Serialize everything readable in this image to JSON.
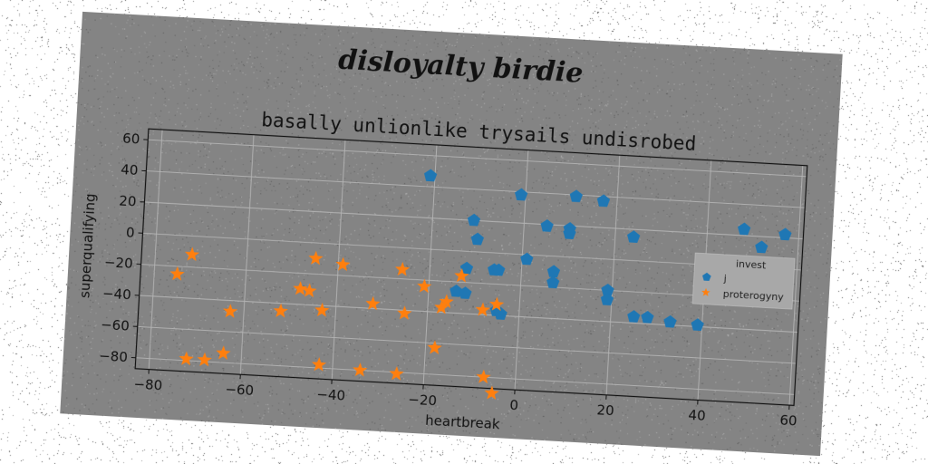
{
  "figure": {
    "suptitle": "disloyalty birdie",
    "background": "#848484"
  },
  "chart_data": {
    "type": "scatter",
    "title": "basally unlionlike trysails undisrobed",
    "xlabel": "heartbreak",
    "ylabel": "superqualifying",
    "xlim": [
      -83,
      61
    ],
    "ylim": [
      -87,
      67
    ],
    "xticks": [
      -80,
      -60,
      -40,
      -20,
      0,
      20,
      40,
      60
    ],
    "yticks": [
      -80,
      -60,
      -40,
      -20,
      0,
      20,
      40,
      60
    ],
    "grid": true,
    "legend": {
      "title": "invest",
      "placement": "right"
    },
    "series": [
      {
        "name": "j",
        "marker": "pentagon",
        "color": "#1f77b4",
        "points": [
          [
            -21,
            47
          ],
          [
            -1,
            38
          ],
          [
            11,
            39
          ],
          [
            17,
            37
          ],
          [
            -11,
            20
          ],
          [
            5,
            19
          ],
          [
            10,
            18
          ],
          [
            10,
            15
          ],
          [
            24,
            15
          ],
          [
            48,
            24
          ],
          [
            57,
            22
          ],
          [
            52,
            13
          ],
          [
            -10,
            8
          ],
          [
            1,
            -3
          ],
          [
            41,
            -1
          ],
          [
            41,
            -4
          ],
          [
            -12,
            -11
          ],
          [
            -6,
            -11
          ],
          [
            -5,
            -11
          ],
          [
            7,
            -10
          ],
          [
            7,
            -17
          ],
          [
            19,
            -20
          ],
          [
            19,
            -26
          ],
          [
            -14,
            -26
          ],
          [
            -12,
            -27
          ],
          [
            -5,
            -37
          ],
          [
            -4,
            -39
          ],
          [
            25,
            -36
          ],
          [
            28,
            -36
          ],
          [
            33,
            -38
          ],
          [
            39,
            -39
          ],
          [
            56,
            -14
          ],
          [
            57,
            -14
          ]
        ]
      },
      {
        "name": "proterogyny",
        "marker": "star",
        "color": "#ff7f0e",
        "points": [
          [
            -75,
            -25
          ],
          [
            -72,
            -12
          ],
          [
            -63,
            -47
          ],
          [
            -72,
            -79
          ],
          [
            -68,
            -79
          ],
          [
            -64,
            -74
          ],
          [
            -52,
            -45
          ],
          [
            -48,
            -30
          ],
          [
            -46,
            -31
          ],
          [
            -45,
            -10
          ],
          [
            -43,
            -43
          ],
          [
            -43,
            -78
          ],
          [
            -39,
            -13
          ],
          [
            -32,
            -37
          ],
          [
            -34,
            -80
          ],
          [
            -26,
            -14
          ],
          [
            -25,
            -42
          ],
          [
            -26,
            -81
          ],
          [
            -21,
            -24
          ],
          [
            -17,
            -37
          ],
          [
            -16,
            -33
          ],
          [
            -13,
            -16
          ],
          [
            -18,
            -63
          ],
          [
            -8,
            -37
          ],
          [
            -7,
            -80
          ],
          [
            -5,
            -33
          ],
          [
            -5,
            -90
          ]
        ]
      }
    ]
  }
}
